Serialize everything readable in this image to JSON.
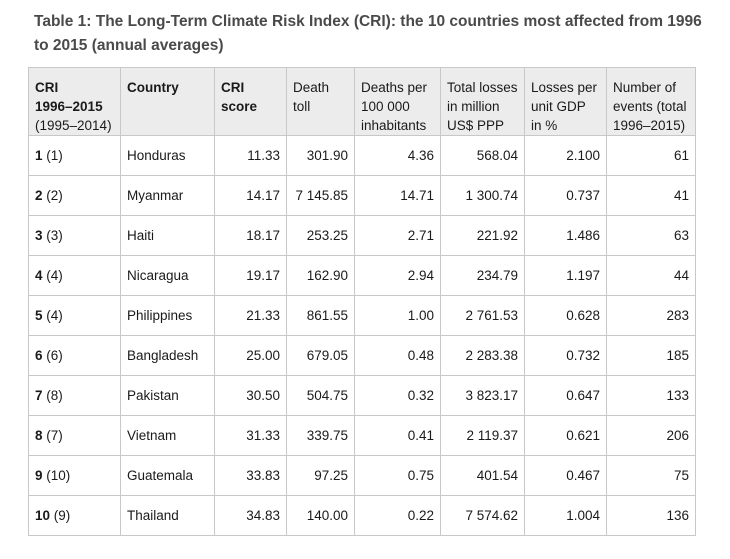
{
  "caption": {
    "line1": "Table 1: The Long-Term Climate Risk Index (CRI): the 10 countries most affected from 1996",
    "line2": "to 2015 (annual averages)"
  },
  "headers": {
    "cri_line1": "CRI",
    "cri_line2": "1996–2015",
    "cri_line3": "(1995–2014)",
    "country": "Country",
    "score_line1": "CRI",
    "score_line2": "score",
    "death_line1": "Death",
    "death_line2": "toll",
    "dpi_line1": "Deaths per",
    "dpi_line2": "100 000",
    "dpi_line3": "inhabitants",
    "losses_line1": "Total losses",
    "losses_line2": "in million",
    "losses_line3": "US$ PPP",
    "gdp_line1": "Losses per",
    "gdp_line2": "unit GDP",
    "gdp_line3": "in %",
    "events_line1": "Number of",
    "events_line2": "events (total",
    "events_line3": "1996–2015)"
  },
  "rows": [
    {
      "rank": "1",
      "prev": " (1)",
      "country": "Honduras",
      "score": "11.33",
      "deaths": "301.90",
      "dpi": "4.36",
      "losses": "568.04",
      "gdp": "2.100",
      "events": "61"
    },
    {
      "rank": "2",
      "prev": " (2)",
      "country": "Myanmar",
      "score": "14.17",
      "deaths": "7 145.85",
      "dpi": "14.71",
      "losses": "1 300.74",
      "gdp": "0.737",
      "events": "41"
    },
    {
      "rank": "3",
      "prev": " (3)",
      "country": "Haiti",
      "score": "18.17",
      "deaths": "253.25",
      "dpi": "2.71",
      "losses": "221.92",
      "gdp": "1.486",
      "events": "63"
    },
    {
      "rank": "4",
      "prev": " (4)",
      "country": "Nicaragua",
      "score": "19.17",
      "deaths": "162.90",
      "dpi": "2.94",
      "losses": "234.79",
      "gdp": "1.197",
      "events": "44"
    },
    {
      "rank": "5",
      "prev": " (4)",
      "country": "Philippines",
      "score": "21.33",
      "deaths": "861.55",
      "dpi": "1.00",
      "losses": "2 761.53",
      "gdp": "0.628",
      "events": "283"
    },
    {
      "rank": "6",
      "prev": " (6)",
      "country": "Bangladesh",
      "score": "25.00",
      "deaths": "679.05",
      "dpi": "0.48",
      "losses": "2 283.38",
      "gdp": "0.732",
      "events": "185"
    },
    {
      "rank": "7",
      "prev": " (8)",
      "country": "Pakistan",
      "score": "30.50",
      "deaths": "504.75",
      "dpi": "0.32",
      "losses": "3 823.17",
      "gdp": "0.647",
      "events": "133"
    },
    {
      "rank": "8",
      "prev": " (7)",
      "country": "Vietnam",
      "score": "31.33",
      "deaths": "339.75",
      "dpi": "0.41",
      "losses": "2 119.37",
      "gdp": "0.621",
      "events": "206"
    },
    {
      "rank": "9",
      "prev": " (10)",
      "country": "Guatemala",
      "score": "33.83",
      "deaths": "97.25",
      "dpi": "0.75",
      "losses": "401.54",
      "gdp": "0.467",
      "events": "75"
    },
    {
      "rank": "10",
      "prev": " (9)",
      "country": "Thailand",
      "score": "34.83",
      "deaths": "140.00",
      "dpi": "0.22",
      "losses": "7 574.62",
      "gdp": "1.004",
      "events": "136"
    }
  ]
}
